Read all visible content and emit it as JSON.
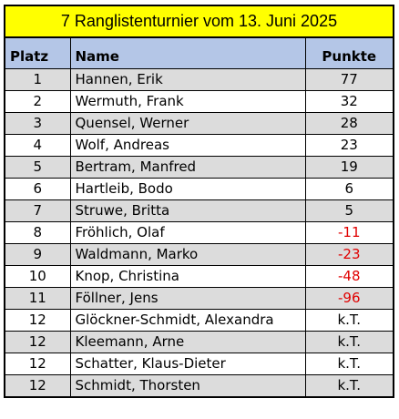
{
  "title": "7 Ranglistenturnier vom 13. Juni 2025",
  "table": {
    "headers": {
      "rank": "Platz",
      "name": "Name",
      "points": "Punkte"
    },
    "rows": [
      {
        "rank": "1",
        "name": "Hannen, Erik",
        "points": "77"
      },
      {
        "rank": "2",
        "name": "Wermuth, Frank",
        "points": "32"
      },
      {
        "rank": "3",
        "name": "Quensel, Werner",
        "points": "28"
      },
      {
        "rank": "4",
        "name": "Wolf, Andreas",
        "points": "23"
      },
      {
        "rank": "5",
        "name": "Bertram, Manfred",
        "points": "19"
      },
      {
        "rank": "6",
        "name": "Hartleib, Bodo",
        "points": "6"
      },
      {
        "rank": "7",
        "name": "Struwe, Britta",
        "points": "5"
      },
      {
        "rank": "8",
        "name": "Fröhlich, Olaf",
        "points": "-11"
      },
      {
        "rank": "9",
        "name": "Waldmann, Marko",
        "points": "-23"
      },
      {
        "rank": "10",
        "name": "Knop, Christina",
        "points": "-48"
      },
      {
        "rank": "11",
        "name": "Föllner, Jens",
        "points": "-96"
      },
      {
        "rank": "12",
        "name": "Glöckner-Schmidt, Alexandra",
        "points": "k.T."
      },
      {
        "rank": "12",
        "name": "Kleemann, Arne",
        "points": "k.T."
      },
      {
        "rank": "12",
        "name": "Schatter, Klaus-Dieter",
        "points": "k.T."
      },
      {
        "rank": "12",
        "name": "Schmidt, Thorsten",
        "points": "k.T."
      }
    ]
  },
  "colors": {
    "title_background": "#ffff00",
    "header_background": "#b4c6e7",
    "row_shade": "#dcdcdc",
    "negative_points": "#e00000"
  }
}
